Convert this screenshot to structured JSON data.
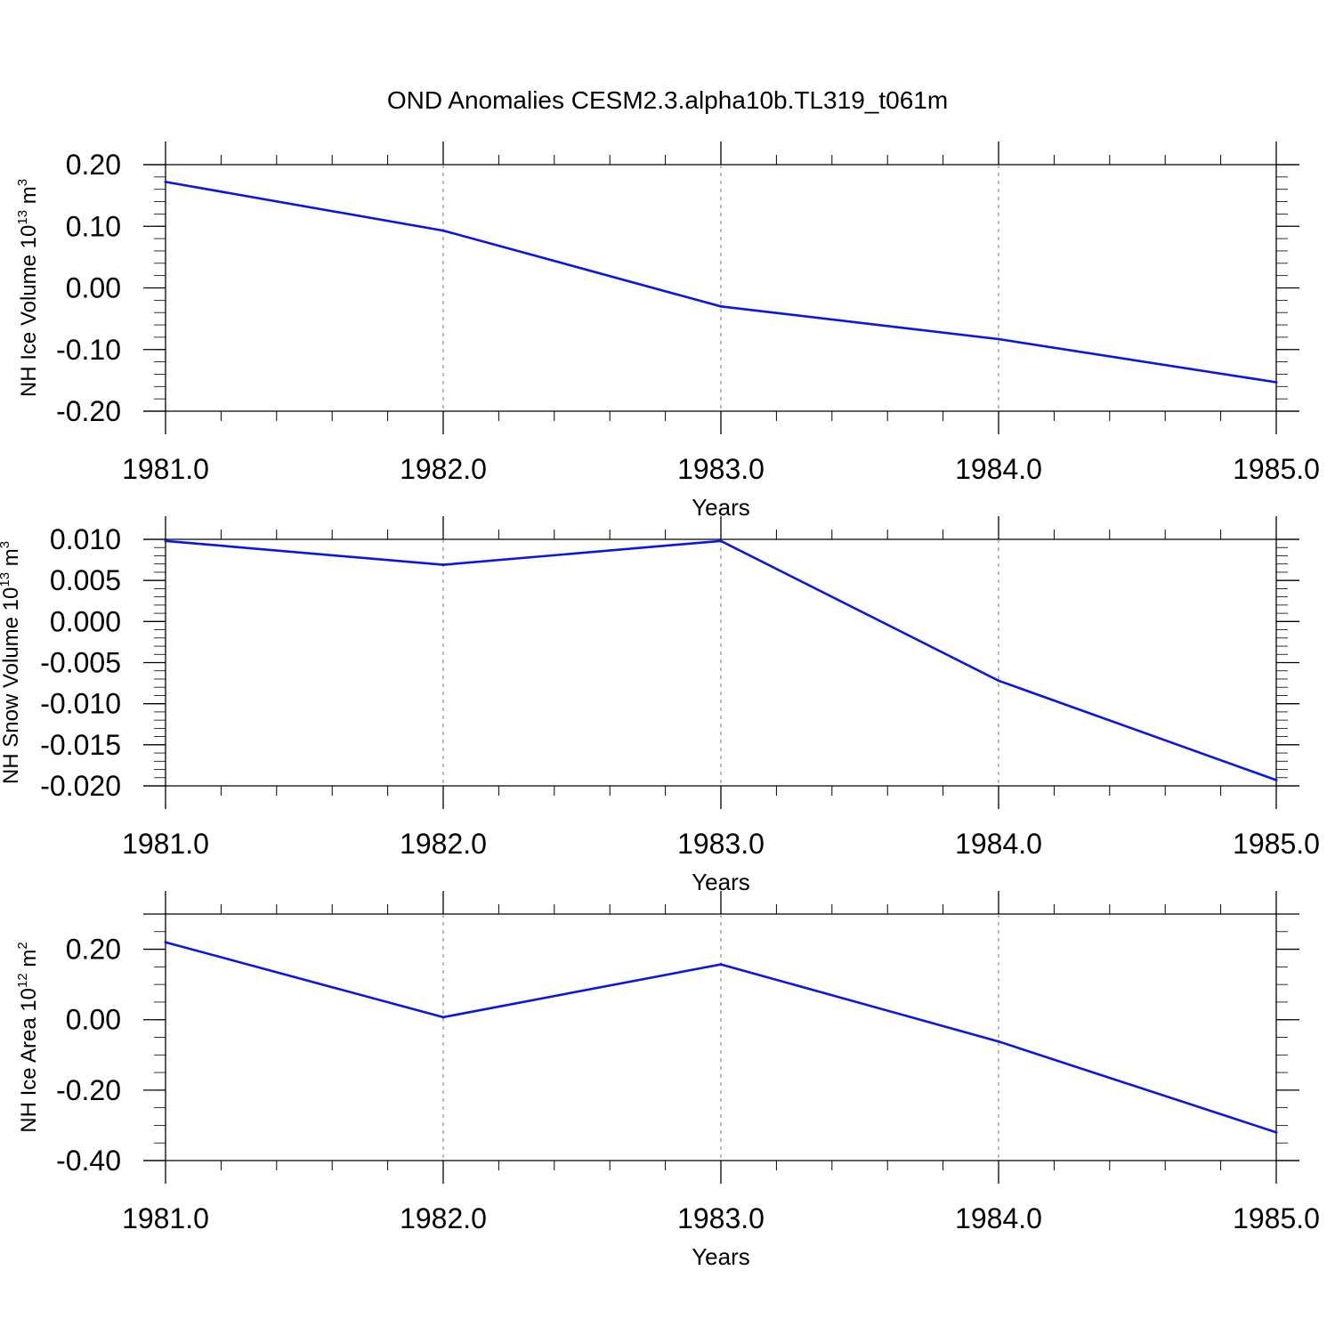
{
  "title": "OND Anomalies CESM2.3.alpha10b.TL319_t061m",
  "colors": {
    "series": "#0a16e6",
    "axis": "#000000",
    "grid": "#777777"
  },
  "chart_data": [
    {
      "type": "line",
      "title": "OND Anomalies CESM2.3.alpha10b.TL319_t061m",
      "xlabel": "Years",
      "ylabel": {
        "main": "NH Ice Volume 10",
        "sup": "13",
        "unit": " m",
        "unit_sup": "3"
      },
      "x": [
        1981.0,
        1982.0,
        1983.0,
        1984.0,
        1985.0
      ],
      "y": [
        0.172,
        0.093,
        -0.03,
        -0.083,
        -0.153
      ],
      "xlim": [
        1981.0,
        1985.0
      ],
      "ylim": [
        -0.2,
        0.2
      ],
      "xticks": [
        1981.0,
        1982.0,
        1983.0,
        1984.0,
        1985.0
      ],
      "xtick_labels": [
        "1981.0",
        "1982.0",
        "1983.0",
        "1984.0",
        "1985.0"
      ],
      "yticks": [
        0.2,
        0.1,
        0.0,
        -0.1,
        -0.2
      ],
      "ytick_labels": [
        "0.20",
        "0.10",
        "0.00",
        "-0.10",
        "-0.20"
      ],
      "yminor_step": 0.02,
      "grid": "vertical-dashed"
    },
    {
      "type": "line",
      "xlabel": "Years",
      "ylabel": {
        "main": "NH Snow Volume 10",
        "sup": "13",
        "unit": " m",
        "unit_sup": "3"
      },
      "x": [
        1981.0,
        1982.0,
        1983.0,
        1984.0,
        1985.0
      ],
      "y": [
        0.0098,
        0.0069,
        0.0098,
        -0.0072,
        -0.0193
      ],
      "xlim": [
        1981.0,
        1985.0
      ],
      "ylim": [
        -0.02,
        0.01
      ],
      "xticks": [
        1981.0,
        1982.0,
        1983.0,
        1984.0,
        1985.0
      ],
      "xtick_labels": [
        "1981.0",
        "1982.0",
        "1983.0",
        "1984.0",
        "1985.0"
      ],
      "yticks": [
        0.01,
        0.005,
        0.0,
        -0.005,
        -0.01,
        -0.015,
        -0.02
      ],
      "ytick_labels": [
        "0.010",
        "0.005",
        "0.000",
        "-0.005",
        "-0.010",
        "-0.015",
        "-0.020"
      ],
      "yminor_step": 0.001,
      "grid": "vertical-dashed"
    },
    {
      "type": "line",
      "xlabel": "Years",
      "ylabel": {
        "main": "NH Ice Area 10",
        "sup": "12",
        "unit": " m",
        "unit_sup": "2"
      },
      "x": [
        1981.0,
        1982.0,
        1983.0,
        1984.0,
        1985.0
      ],
      "y": [
        0.22,
        0.007,
        0.157,
        -0.062,
        -0.32
      ],
      "xlim": [
        1981.0,
        1985.0
      ],
      "ylim": [
        -0.4,
        0.3
      ],
      "xticks": [
        1981.0,
        1982.0,
        1983.0,
        1984.0,
        1985.0
      ],
      "xtick_labels": [
        "1981.0",
        "1982.0",
        "1983.0",
        "1984.0",
        "1985.0"
      ],
      "yticks": [
        0.2,
        0.0,
        -0.2,
        -0.4
      ],
      "ytick_labels": [
        "0.20",
        "0.00",
        "-0.20",
        "-0.40"
      ],
      "yminor_step": 0.05,
      "grid": "vertical-dashed"
    }
  ]
}
